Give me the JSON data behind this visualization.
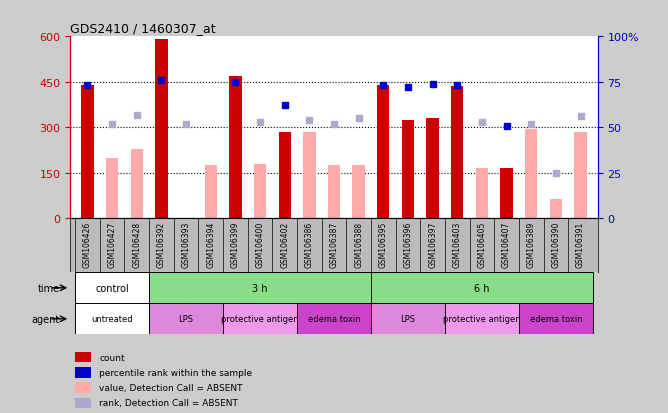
{
  "title": "GDS2410 / 1460307_at",
  "samples": [
    "GSM106426",
    "GSM106427",
    "GSM106428",
    "GSM106392",
    "GSM106393",
    "GSM106394",
    "GSM106399",
    "GSM106400",
    "GSM106402",
    "GSM106386",
    "GSM106387",
    "GSM106388",
    "GSM106395",
    "GSM106396",
    "GSM106397",
    "GSM106403",
    "GSM106405",
    "GSM106407",
    "GSM106389",
    "GSM106390",
    "GSM106391"
  ],
  "is_present": [
    true,
    false,
    false,
    true,
    false,
    false,
    true,
    false,
    true,
    false,
    false,
    false,
    true,
    true,
    true,
    true,
    false,
    true,
    false,
    false,
    false
  ],
  "count_vals": [
    440,
    200,
    230,
    590,
    0,
    175,
    470,
    180,
    285,
    285,
    175,
    175,
    440,
    325,
    330,
    435,
    165,
    165,
    295,
    65,
    285
  ],
  "rank_vals": [
    73,
    52,
    57,
    76,
    52,
    0,
    75,
    53,
    62,
    54,
    52,
    55,
    73,
    72,
    74,
    73,
    53,
    51,
    52,
    25,
    56
  ],
  "ylim_left": [
    0,
    600
  ],
  "ylim_right": [
    0,
    100
  ],
  "yticks_left": [
    0,
    150,
    300,
    450,
    600
  ],
  "yticks_right": [
    0,
    25,
    50,
    75,
    100
  ],
  "ytick_labels_left": [
    "0",
    "150",
    "300",
    "450",
    "600"
  ],
  "ytick_labels_right": [
    "0",
    "25",
    "50",
    "75",
    "100%"
  ],
  "hlines": [
    150,
    300,
    450
  ],
  "left_color": "#cc0000",
  "present_bar_color": "#cc0000",
  "absent_bar_color": "#ffaaaa",
  "present_rank_color": "#0000cc",
  "absent_rank_color": "#aaaacc",
  "bg_color": "#cccccc",
  "plot_bg_color": "#ffffff",
  "xticklabel_bg": "#bbbbbb",
  "time_row": [
    {
      "label": "control",
      "start": 0,
      "end": 3,
      "color": "#ffffff"
    },
    {
      "label": "3 h",
      "start": 3,
      "end": 12,
      "color": "#88dd88"
    },
    {
      "label": "6 h",
      "start": 12,
      "end": 21,
      "color": "#88dd88"
    }
  ],
  "agent_row": [
    {
      "label": "untreated",
      "start": 0,
      "end": 3,
      "color": "#ffffff"
    },
    {
      "label": "LPS",
      "start": 3,
      "end": 6,
      "color": "#dd88dd"
    },
    {
      "label": "protective antigen",
      "start": 6,
      "end": 9,
      "color": "#ee99ee"
    },
    {
      "label": "edema toxin",
      "start": 9,
      "end": 12,
      "color": "#cc44cc"
    },
    {
      "label": "LPS",
      "start": 12,
      "end": 15,
      "color": "#dd88dd"
    },
    {
      "label": "protective antigen",
      "start": 15,
      "end": 18,
      "color": "#ee99ee"
    },
    {
      "label": "edema toxin",
      "start": 18,
      "end": 21,
      "color": "#cc44cc"
    }
  ],
  "legend_items": [
    {
      "label": "count",
      "color": "#cc0000"
    },
    {
      "label": "percentile rank within the sample",
      "color": "#0000cc"
    },
    {
      "label": "value, Detection Call = ABSENT",
      "color": "#ffaaaa"
    },
    {
      "label": "rank, Detection Call = ABSENT",
      "color": "#aaaacc"
    }
  ]
}
